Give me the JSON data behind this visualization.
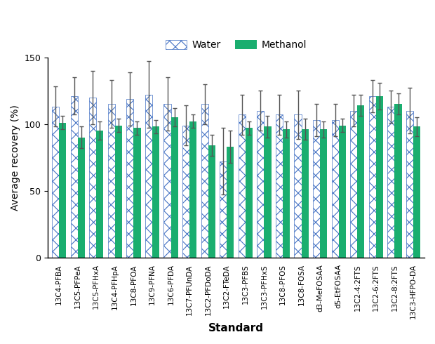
{
  "categories": [
    "13C4-PFBA",
    "13C5-PFPeA",
    "13C5-PFHxA",
    "13C4-PFHpA",
    "13C8-PFOA",
    "13C9-PFNA",
    "13C6-PFDA",
    "13C7-PFUnDA",
    "13C2-PFDoDA",
    "13C2-FTeDA",
    "13C3-PFBS",
    "13C3-PFHxS",
    "13C8-PFOS",
    "13C8-FOSA",
    "d3-MeFOSAA",
    "d5-EtFOSAA",
    "13C2-4:2FTS",
    "13C2-6:2FTS",
    "13C2-8:2FTS",
    "13C3-HFPO-DA"
  ],
  "water_values": [
    113,
    121,
    120,
    115,
    119,
    122,
    115,
    99,
    115,
    72,
    107,
    110,
    107,
    107,
    103,
    103,
    110,
    121,
    113,
    110
  ],
  "water_errors": [
    15,
    14,
    20,
    18,
    20,
    25,
    20,
    15,
    15,
    25,
    15,
    15,
    15,
    18,
    12,
    12,
    12,
    12,
    12,
    17
  ],
  "methanol_values": [
    101,
    90,
    95,
    99,
    97,
    98,
    105,
    102,
    84,
    83,
    97,
    98,
    96,
    96,
    96,
    99,
    114,
    121,
    115,
    98
  ],
  "methanol_errors": [
    5,
    8,
    7,
    5,
    5,
    5,
    7,
    5,
    8,
    12,
    5,
    8,
    6,
    8,
    6,
    5,
    8,
    10,
    8,
    7
  ],
  "water_face_color": "#FFFFFF",
  "water_hatch_color": "#4472C4",
  "methanol_color": "#1AAE6F",
  "ylabel": "Average recovery (%)",
  "xlabel": "Standard",
  "ylim": [
    0,
    150
  ],
  "yticks": [
    0,
    50,
    100,
    150
  ],
  "legend_labels": [
    "Water",
    "Methanol"
  ],
  "bar_width": 0.38,
  "figsize": [
    6.2,
    4.9
  ],
  "dpi": 100,
  "error_color": "#555555",
  "xlabel_fontsize": 11,
  "ylabel_fontsize": 10,
  "tick_fontsize": 7.5,
  "legend_fontsize": 10
}
